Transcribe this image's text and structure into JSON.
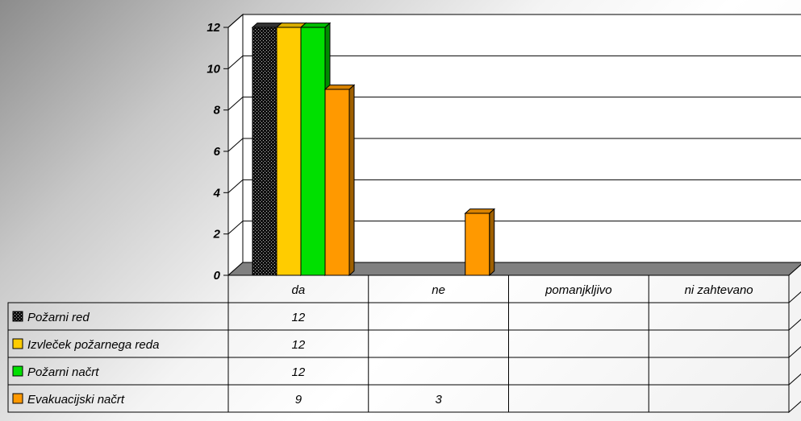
{
  "chart_data": {
    "type": "bar",
    "categories": [
      "da",
      "ne",
      "pomanjkljivo",
      "ni zahtevano"
    ],
    "series": [
      {
        "name": "Požarni red",
        "values": [
          12,
          null,
          null,
          null
        ],
        "color": "#101010",
        "pattern": "dotted"
      },
      {
        "name": "Izvleček požarnega reda",
        "values": [
          12,
          null,
          null,
          null
        ],
        "color": "#ffcc00"
      },
      {
        "name": "Požarni načrt",
        "values": [
          12,
          null,
          null,
          null
        ],
        "color": "#00e000"
      },
      {
        "name": "Evakuacijski načrt",
        "values": [
          9,
          3,
          null,
          null
        ],
        "color": "#ff9900"
      }
    ],
    "ylim": [
      0,
      12
    ],
    "yticks": [
      0,
      2,
      4,
      6,
      8,
      10,
      12
    ],
    "grid": true,
    "legend": "data-table-left",
    "title": "",
    "xlabel": "",
    "ylabel": "",
    "floor_color": "#808080",
    "table_cells": [
      [
        "12",
        "",
        "",
        ""
      ],
      [
        "12",
        "",
        "",
        ""
      ],
      [
        "12",
        "",
        "",
        ""
      ],
      [
        "9",
        "3",
        "",
        ""
      ]
    ]
  }
}
